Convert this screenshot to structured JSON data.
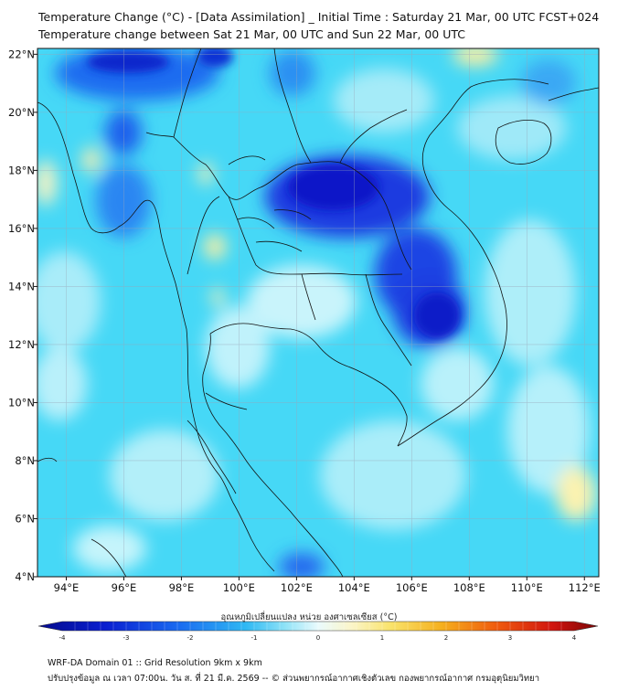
{
  "header": {
    "line1": "Temperature Change (°C) - [Data Assimilation] _ Initial Time : Saturday 21 Mar, 00 UTC FCST+024",
    "line2": "Temperature change between Sat 21 Mar, 00 UTC and Sun 22 Mar, 00 UTC"
  },
  "map": {
    "lon_range": [
      93,
      112.5
    ],
    "lat_range": [
      4,
      22.2
    ],
    "lon_ticks": [
      "94°E",
      "96°E",
      "98°E",
      "100°E",
      "102°E",
      "104°E",
      "106°E",
      "108°E",
      "110°E",
      "112°E"
    ],
    "lat_ticks": [
      "4°N",
      "6°N",
      "8°N",
      "10°N",
      "12°N",
      "14°N",
      "16°N",
      "18°N",
      "20°N",
      "22°N"
    ],
    "field_description_colors": {
      "background": "#46d8f6",
      "strong_cooling": "#0b16c8",
      "moderate_cooling": "#1f6cf0",
      "weak_change": "#bff3fb",
      "warming": "#fdf2a6"
    }
  },
  "colorbar": {
    "title": "อุณหภูมิเปลี่ยนแปลง หน่วย องศาเซลเซียส (°C)",
    "min": -4,
    "max": 4,
    "tick_labels": [
      "-4",
      "-3",
      "-2",
      "-1",
      "0",
      "1",
      "2",
      "3",
      "4"
    ]
  },
  "footer": {
    "line1": "WRF-DA Domain 01 :: Grid Resolution 9km x 9km",
    "line2": "ปรับปรุงข้อมูล ณ เวลา 07:00น. วัน ส. ที่ 21 มี.ค. 2569 -- © ส่วนพยากรณ์อากาศเชิงตัวเลข กองพยากรณ์อากาศ กรมอุตุนิยมวิทยา"
  }
}
